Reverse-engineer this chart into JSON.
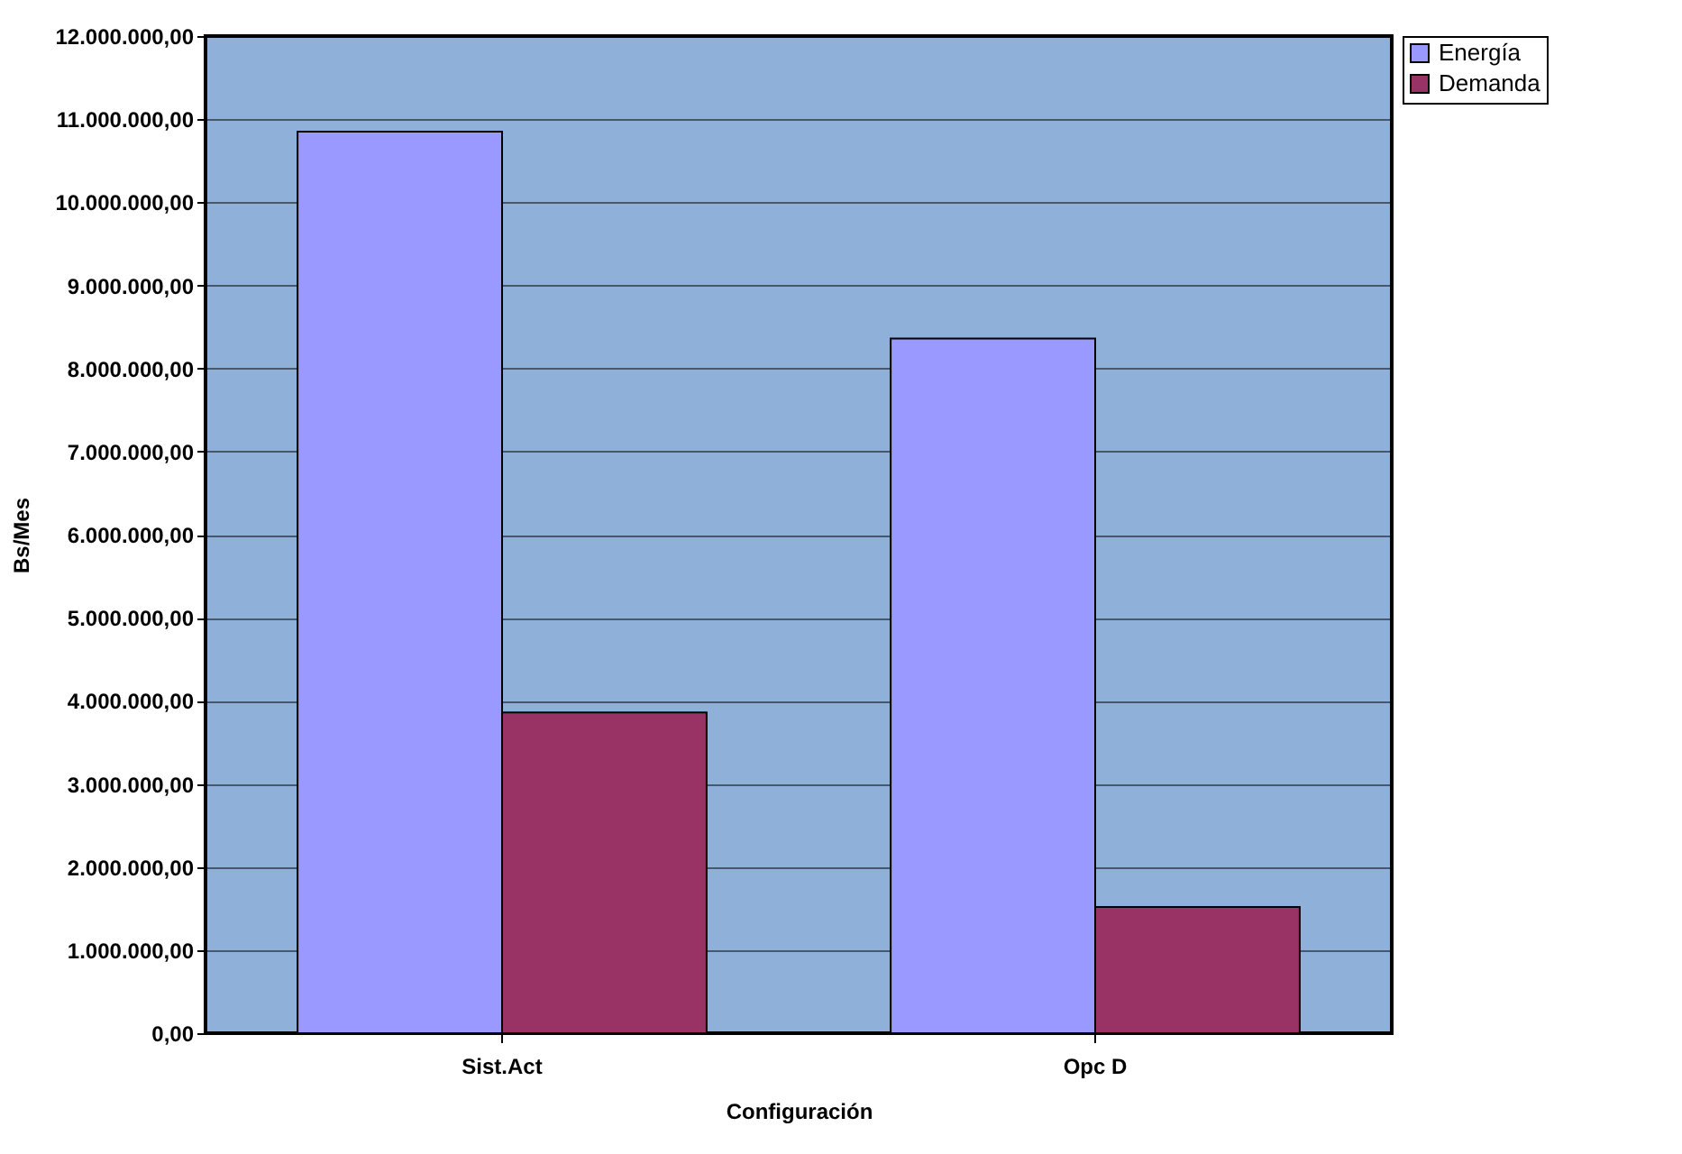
{
  "chart_data": {
    "type": "bar",
    "xlabel": "Configuración",
    "ylabel": "Bs/Mes",
    "categories": [
      "Sist.Act",
      "Opc D"
    ],
    "series": [
      {
        "name": "Energía",
        "color": "#9999ff",
        "values": [
          10850000,
          8360000
        ]
      },
      {
        "name": "Demanda",
        "color": "#993366",
        "values": [
          3860000,
          1520000
        ]
      }
    ],
    "ylim": [
      0,
      12000000
    ],
    "yticks": [
      {
        "value": 0,
        "label": "0,00"
      },
      {
        "value": 1000000,
        "label": "1.000.000,00"
      },
      {
        "value": 2000000,
        "label": "2.000.000,00"
      },
      {
        "value": 3000000,
        "label": "3.000.000,00"
      },
      {
        "value": 4000000,
        "label": "4.000.000,00"
      },
      {
        "value": 5000000,
        "label": "5.000.000,00"
      },
      {
        "value": 6000000,
        "label": "6.000.000,00"
      },
      {
        "value": 7000000,
        "label": "7.000.000,00"
      },
      {
        "value": 8000000,
        "label": "8.000.000,00"
      },
      {
        "value": 9000000,
        "label": "9.000.000,00"
      },
      {
        "value": 10000000,
        "label": "10.000.000,00"
      },
      {
        "value": 11000000,
        "label": "11.000.000,00"
      },
      {
        "value": 12000000,
        "label": "12.000.000,00"
      }
    ],
    "grid": "y",
    "legend": "right"
  }
}
